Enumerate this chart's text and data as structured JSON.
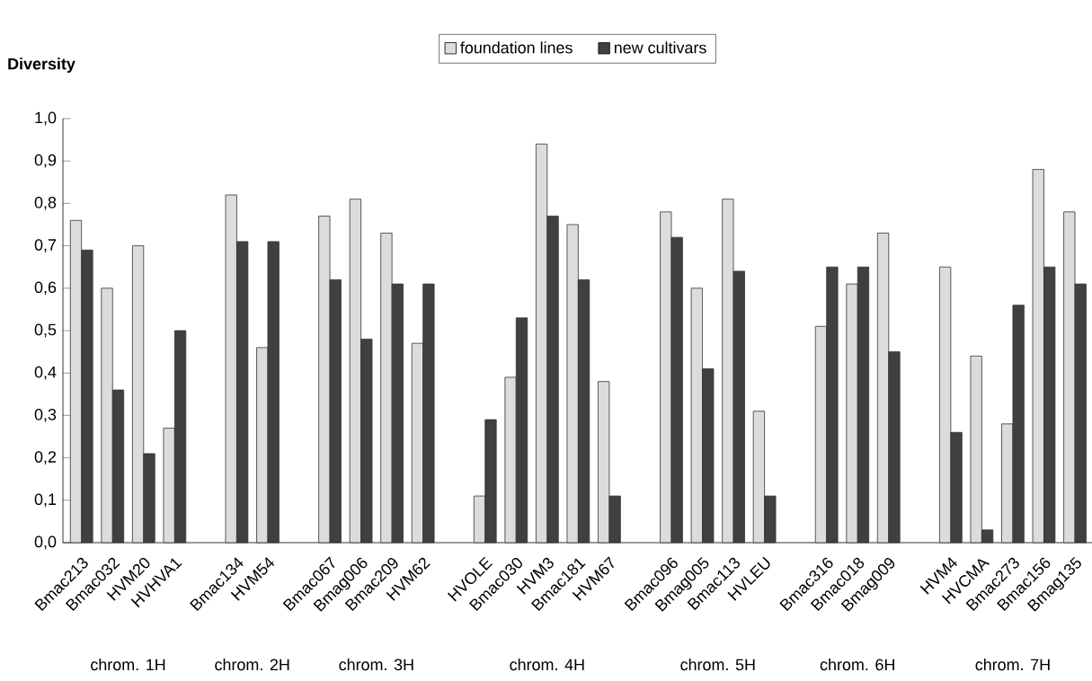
{
  "chart_data": {
    "type": "bar",
    "ylabel": "Diversity",
    "categories": [
      "Bmac213",
      "Bmac032",
      "HVM20",
      "HVHVA1",
      null,
      "Bmac134",
      "HVM54",
      null,
      "Bmac067",
      "Bmag006",
      "Bmac209",
      "HVM62",
      null,
      "HVOLE",
      "Bmac030",
      "HVM3",
      "Bmac181",
      "HVM67",
      null,
      "Bmac096",
      "Bmag005",
      "Bmac113",
      "HVLEU",
      null,
      "Bmac316",
      "Bmac018",
      "Bmag009",
      null,
      "HVM4",
      "HVCMA",
      "Bmac273",
      "Bmac156",
      "Bmag135"
    ],
    "series": [
      {
        "name": "foundation lines",
        "color": "#dcdcdc",
        "values": [
          0.76,
          0.6,
          0.7,
          0.27,
          null,
          0.82,
          0.46,
          null,
          0.77,
          0.81,
          0.73,
          0.47,
          null,
          0.11,
          0.39,
          0.94,
          0.75,
          0.38,
          null,
          0.78,
          0.6,
          0.81,
          0.31,
          null,
          0.51,
          0.61,
          0.73,
          null,
          0.65,
          0.44,
          0.28,
          0.88,
          0.78
        ]
      },
      {
        "name": "new cultivars",
        "color": "#404040",
        "values": [
          0.69,
          0.36,
          0.21,
          0.5,
          null,
          0.71,
          0.71,
          null,
          0.62,
          0.48,
          0.61,
          0.61,
          null,
          0.29,
          0.53,
          0.77,
          0.62,
          0.11,
          null,
          0.72,
          0.41,
          0.64,
          0.11,
          null,
          0.65,
          0.65,
          0.45,
          null,
          0.26,
          0.03,
          0.56,
          0.65,
          0.61
        ]
      }
    ],
    "ylim": [
      0,
      1
    ],
    "yticks": [
      {
        "value": 0,
        "label": "0,0"
      },
      {
        "value": 0.1,
        "label": "0,1"
      },
      {
        "value": 0.2,
        "label": "0,2"
      },
      {
        "value": 0.3,
        "label": "0,3"
      },
      {
        "value": 0.4,
        "label": "0,4"
      },
      {
        "value": 0.5,
        "label": "0,5"
      },
      {
        "value": 0.6,
        "label": "0,6"
      },
      {
        "value": 0.7,
        "label": "0,7"
      },
      {
        "value": 0.8,
        "label": "0,8"
      },
      {
        "value": 0.9,
        "label": "0,9"
      },
      {
        "value": 1.0,
        "label": "1,0"
      }
    ],
    "annotations": [
      "chrom. 1H",
      "chrom. 2H",
      "chrom. 3H",
      "chrom. 4H",
      "chrom. 5H",
      "chrom. 6H",
      "chrom. 7H"
    ],
    "legend": "top",
    "grid": false
  }
}
